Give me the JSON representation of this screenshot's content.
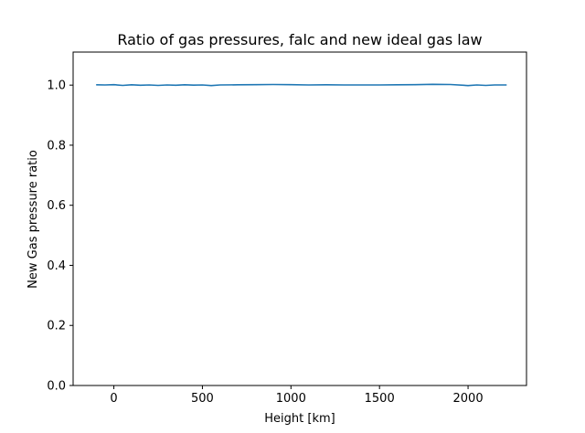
{
  "chart_data": {
    "type": "line",
    "title": "Ratio of gas pressures, falc and new ideal gas law",
    "xlabel": "Height [km]",
    "ylabel": "New Gas pressure ratio",
    "xlim": [
      -230,
      2330
    ],
    "ylim": [
      0.0,
      1.11
    ],
    "xticks": [
      0,
      500,
      1000,
      1500,
      2000
    ],
    "yticks": [
      0.0,
      0.2,
      0.4,
      0.6,
      0.8,
      1.0
    ],
    "ytick_labels": [
      "0.0",
      "0.2",
      "0.4",
      "0.6",
      "0.8",
      "1.0"
    ],
    "grid": false,
    "color": "#1f77b4",
    "series": [
      {
        "x": [
          -100,
          -50,
          0,
          50,
          100,
          150,
          200,
          250,
          300,
          350,
          400,
          450,
          500,
          550,
          600,
          700,
          800,
          900,
          1000,
          1100,
          1200,
          1300,
          1400,
          1500,
          1600,
          1700,
          1800,
          1900,
          2000,
          2050,
          2100,
          2150,
          2218
        ],
        "y": [
          1.001,
          1.0005,
          1.0015,
          0.999,
          1.001,
          0.9995,
          1.0005,
          0.999,
          1.0005,
          0.9995,
          1.001,
          1.0,
          1.0005,
          0.9985,
          1.0005,
          1.001,
          1.0015,
          1.002,
          1.0015,
          1.0005,
          1.001,
          1.0005,
          1.0005,
          1.0005,
          1.001,
          1.0015,
          1.0025,
          1.002,
          0.9985,
          1.0005,
          0.999,
          1.0005,
          1.0005
        ]
      }
    ]
  }
}
